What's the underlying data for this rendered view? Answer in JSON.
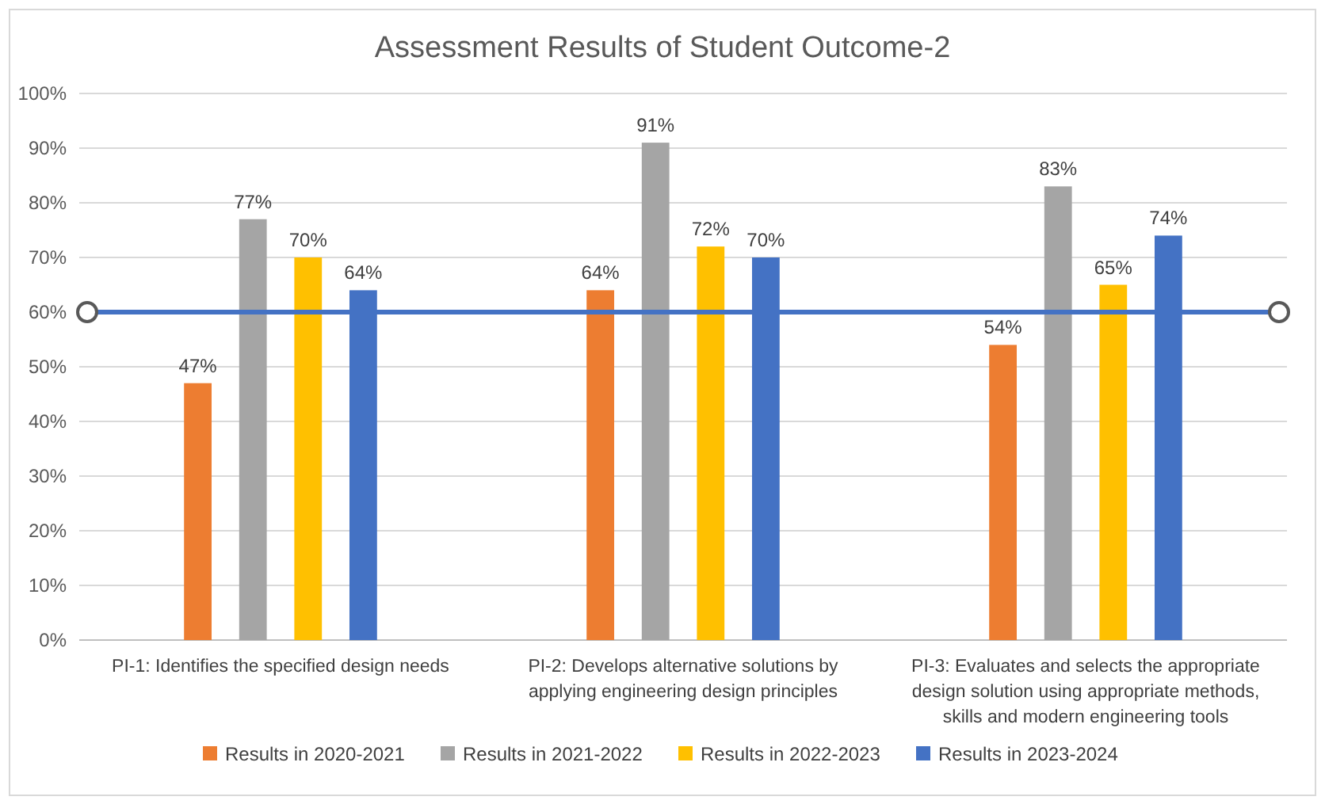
{
  "chart_data": {
    "type": "bar",
    "title": "Assessment Results of Student Outcome-2",
    "categories": [
      "PI-1: Identifies the specified design needs",
      "PI-2: Develops alternative solutions by applying engineering design principles",
      "PI-3: Evaluates and selects the appropriate design solution using appropriate methods, skills and modern engineering tools"
    ],
    "series": [
      {
        "name": "Results in 2020-2021",
        "color": "#ed7d31",
        "values": [
          47,
          64,
          54
        ],
        "value_labels": [
          "47%",
          "64%",
          "54%"
        ]
      },
      {
        "name": "Results in 2021-2022",
        "color": "#a5a5a5",
        "values": [
          77,
          91,
          83
        ],
        "value_labels": [
          "77%",
          "91%",
          "83%"
        ]
      },
      {
        "name": "Results in 2022-2023",
        "color": "#ffc000",
        "values": [
          70,
          72,
          65
        ],
        "value_labels": [
          "70%",
          "72%",
          "65%"
        ]
      },
      {
        "name": "Results in 2023-2024",
        "color": "#4472c4",
        "values": [
          64,
          70,
          74
        ],
        "value_labels": [
          "64%",
          "70%",
          "74%"
        ]
      }
    ],
    "ylim": [
      0,
      100
    ],
    "yticks": [
      {
        "value": 0,
        "label": "0%"
      },
      {
        "value": 10,
        "label": "10%"
      },
      {
        "value": 20,
        "label": "20%"
      },
      {
        "value": 30,
        "label": "30%"
      },
      {
        "value": 40,
        "label": "40%"
      },
      {
        "value": 50,
        "label": "50%"
      },
      {
        "value": 60,
        "label": "60%"
      },
      {
        "value": 70,
        "label": "70%"
      },
      {
        "value": 80,
        "label": "80%"
      },
      {
        "value": 90,
        "label": "90%"
      },
      {
        "value": 100,
        "label": "100%"
      }
    ],
    "ref_lines": [
      {
        "axis": "y",
        "value": 60,
        "color": "#4472c4",
        "line_style": "solid"
      }
    ],
    "grid": "y",
    "legend": "bottom"
  }
}
